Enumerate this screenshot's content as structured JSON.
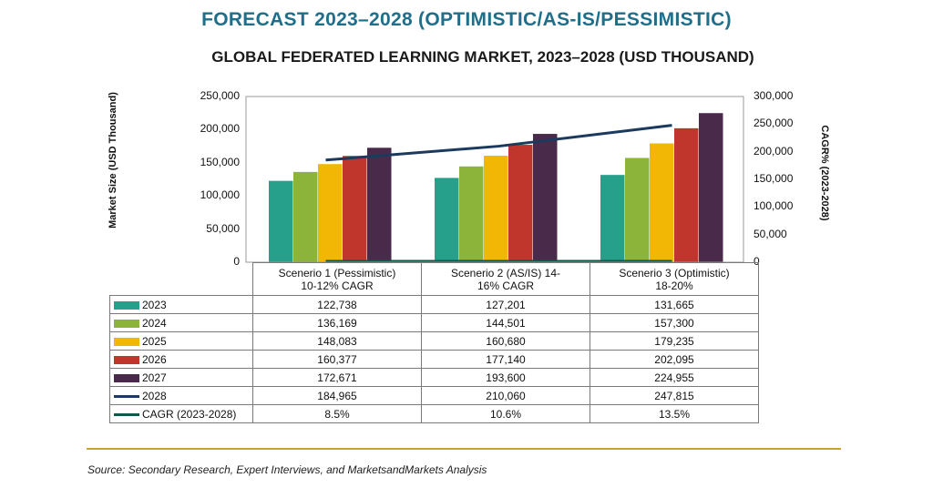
{
  "title": "FORECAST 2023–2028 (OPTIMISTIC/AS-IS/PESSIMISTIC)",
  "subtitle": "GLOBAL FEDERATED LEARNING MARKET, 2023–2028 (USD THOUSAND)",
  "source": "Source: Secondary Research, Expert Interviews, and MarketsandMarkets Analysis",
  "colors": {
    "2023": "#26a08a",
    "2024": "#8cb43a",
    "2025": "#f2b705",
    "2026": "#c0362c",
    "2027": "#4a2a4a",
    "2028": "#1c3a5e",
    "cagr": "#0d5a4a"
  },
  "chart_data": {
    "type": "bar",
    "categories": [
      [
        "Scenerio 1 (Pessimistic)",
        "10-12% CAGR"
      ],
      [
        "Scenerio 2 (AS/IS) 14-",
        "16% CAGR"
      ],
      [
        "Scenerio 3 (Optimistic)",
        "18-20%"
      ]
    ],
    "ylabel": "Market Size (USD Thousand)",
    "y2label": "CAGR% (2023-2028)",
    "ylim": [
      0,
      250000
    ],
    "y2lim": [
      0,
      300000
    ],
    "yticks": [
      "250,000",
      "200,000",
      "150,000",
      "100,000",
      "50,000",
      "0"
    ],
    "y2ticks": [
      "300,000",
      "250,000",
      "200,000",
      "150,000",
      "100,000",
      "50,000",
      "0"
    ],
    "grid": false,
    "series": [
      {
        "name": "2023",
        "type": "bar",
        "values": [
          122738,
          127201,
          131665
        ],
        "labels": [
          "122,738",
          "127,201",
          "131,665"
        ]
      },
      {
        "name": "2024",
        "type": "bar",
        "values": [
          136169,
          144501,
          157300
        ],
        "labels": [
          "136,169",
          "144,501",
          "157,300"
        ]
      },
      {
        "name": "2025",
        "type": "bar",
        "values": [
          148083,
          160680,
          179235
        ],
        "labels": [
          "148,083",
          "160,680",
          "179,235"
        ]
      },
      {
        "name": "2026",
        "type": "bar",
        "values": [
          160377,
          177140,
          202095
        ],
        "labels": [
          "160,377",
          "177,140",
          "202,095"
        ]
      },
      {
        "name": "2027",
        "type": "bar",
        "values": [
          172671,
          193600,
          224955
        ],
        "labels": [
          "172,671",
          "193,600",
          "224,955"
        ]
      },
      {
        "name": "2028",
        "type": "line",
        "axis": "right",
        "values": [
          184965,
          210060,
          247815
        ],
        "labels": [
          "184,965",
          "210,060",
          "247,815"
        ]
      },
      {
        "name": "CAGR (2023-2028)",
        "type": "line",
        "axis": "right",
        "values": [
          8.5,
          10.6,
          13.5
        ],
        "labels": [
          "8.5%",
          "10.6%",
          "13.5%"
        ]
      }
    ]
  }
}
